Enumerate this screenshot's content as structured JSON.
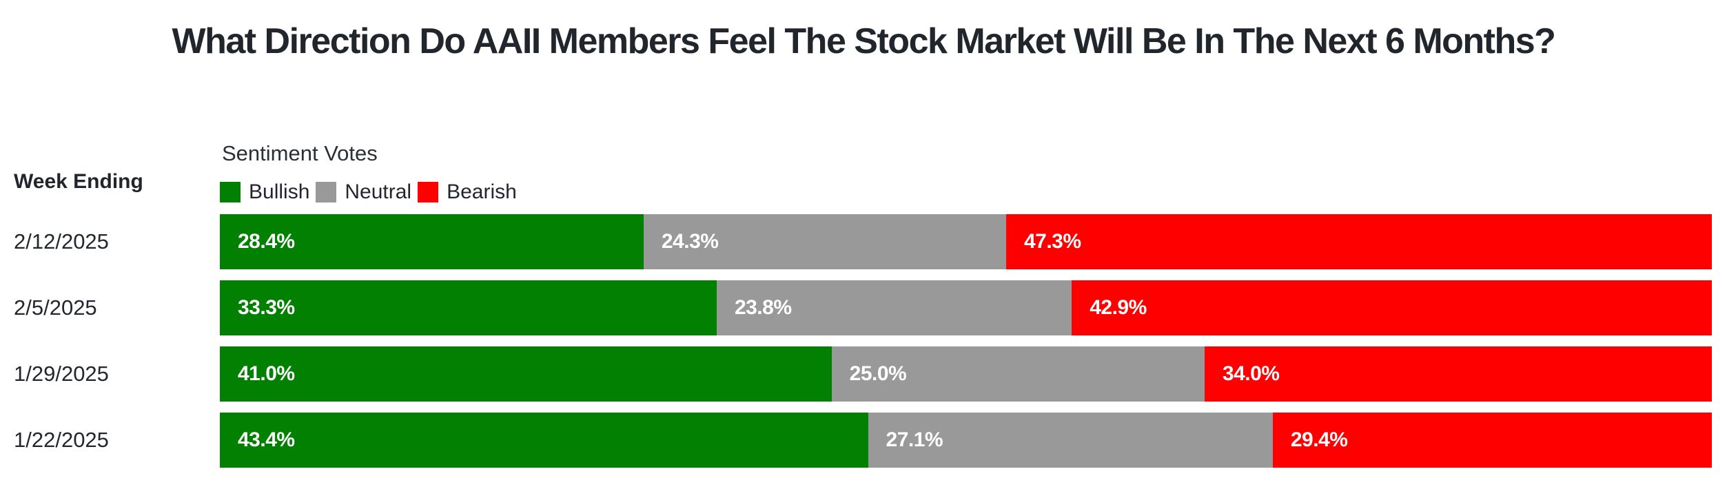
{
  "page": {
    "background_color": "#ffffff",
    "text_color": "#23262c",
    "title_color": "#21252c",
    "bar_label_color": "#ffffff"
  },
  "chart_data": {
    "type": "bar",
    "variant": "horizontal-stacked-100pct",
    "title": "What Direction Do AAII Members Feel The Stock Market Will Be In The Next 6 Months?",
    "legend_title": "Sentiment Votes",
    "legend_position": "top-left",
    "row_header": "Week Ending",
    "categories": [
      "2/12/2025",
      "2/5/2025",
      "1/29/2025",
      "1/22/2025"
    ],
    "series": [
      {
        "name": "Bullish",
        "color": "#018001",
        "values": [
          28.4,
          33.3,
          41.0,
          43.4
        ]
      },
      {
        "name": "Neutral",
        "color": "#999999",
        "values": [
          24.3,
          23.8,
          25.0,
          27.1
        ]
      },
      {
        "name": "Bearish",
        "color": "#fe0000",
        "values": [
          47.3,
          42.9,
          34.0,
          29.4
        ]
      }
    ],
    "value_labels": [
      [
        "28.4%",
        "24.3%",
        "47.3%"
      ],
      [
        "33.3%",
        "23.8%",
        "42.9%"
      ],
      [
        "41.0%",
        "25.0%",
        "34.0%"
      ],
      [
        "43.4%",
        "27.1%",
        "29.4%"
      ]
    ],
    "xlim": [
      0,
      100
    ],
    "grid": false
  }
}
